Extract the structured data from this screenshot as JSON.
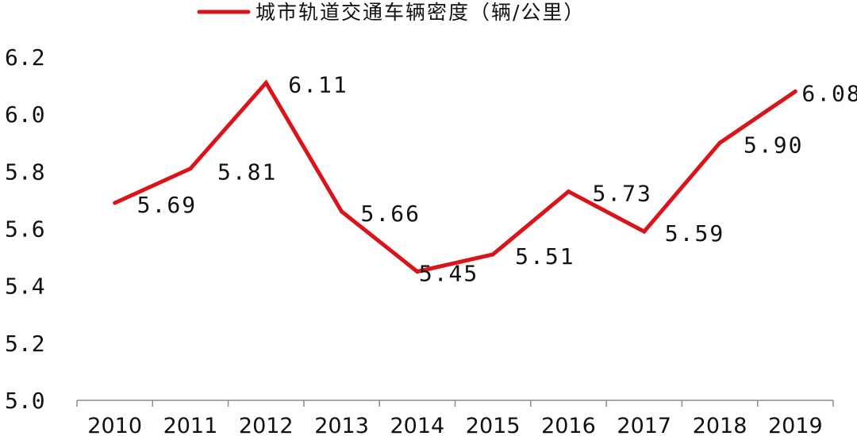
{
  "chart_data": {
    "type": "line",
    "title": "",
    "xlabel": "",
    "ylabel": "",
    "categories": [
      "2010",
      "2011",
      "2012",
      "2013",
      "2014",
      "2015",
      "2016",
      "2017",
      "2018",
      "2019"
    ],
    "series": [
      {
        "name": "城市轨道交通车辆密度（辆/公里）",
        "values": [
          5.69,
          5.81,
          6.11,
          5.66,
          5.45,
          5.51,
          5.73,
          5.59,
          5.9,
          6.08
        ],
        "value_labels": [
          "5.69",
          "5.81",
          "6.11",
          "5.66",
          "5.45",
          "5.51",
          "5.73",
          "5.59",
          "5.90",
          "6.08"
        ],
        "color": "#d9141b"
      }
    ],
    "y_ticks": [
      "5.0",
      "5.2",
      "5.4",
      "5.6",
      "5.8",
      "6.0",
      "6.2"
    ],
    "ylim": [
      5.0,
      6.2
    ],
    "grid": false,
    "legend_position": "top"
  }
}
